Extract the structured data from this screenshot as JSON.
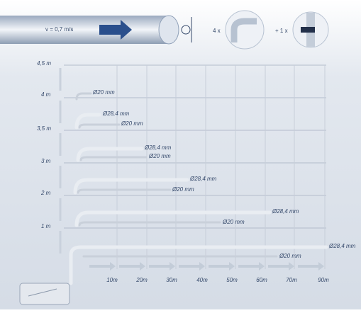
{
  "header": {
    "velocity": "v = 0,7 m/s",
    "elbows": "4 x",
    "tees": "+ 1 x"
  },
  "heights": [
    "4,5 m",
    "4 m",
    "3,5 m",
    "3 m",
    "2 m",
    "1 m"
  ],
  "rows": [
    {
      "pipes": [
        "Ø20 mm"
      ]
    },
    {
      "pipes": [
        "Ø28,4 mm",
        "Ø20 mm"
      ]
    },
    {
      "pipes": [
        "Ø28,4 mm",
        "Ø20 mm"
      ]
    },
    {
      "pipes": [
        "Ø28,4 mm",
        "Ø20 mm"
      ]
    },
    {
      "pipes": [
        "Ø28,4 mm",
        "Ø20 mm"
      ]
    },
    {
      "pipes": [
        "Ø28,4 mm",
        "Ø20 mm"
      ]
    }
  ],
  "distances": [
    "10m",
    "20m",
    "30m",
    "40m",
    "50m",
    "60m",
    "70m",
    "90m"
  ]
}
